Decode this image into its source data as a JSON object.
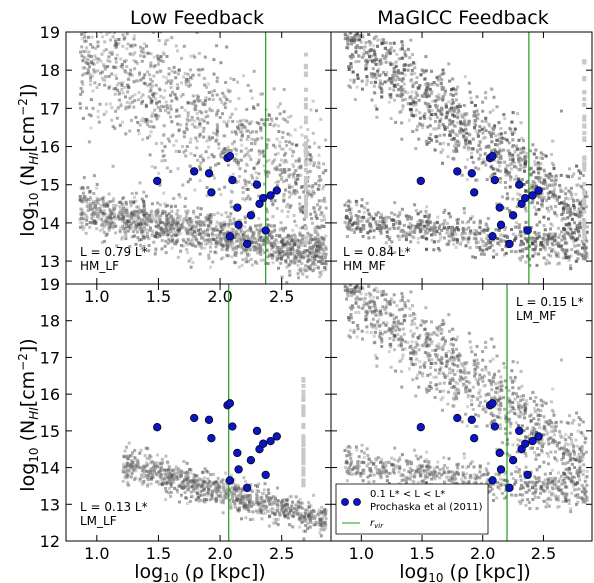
{
  "figure": {
    "column_titles": [
      "Low Feedback",
      "MaGICC Feedback"
    ],
    "xlabel_prefix": "log",
    "xlabel_sub": "10",
    "xlabel_main": " (ρ [kpc])",
    "ylabel_prefix": "log",
    "ylabel_sub": "10",
    "ylabel_main": " (N",
    "ylabel_sub2": "HI",
    "ylabel_unit": "[cm",
    "ylabel_sup": "−2",
    "ylabel_end": "])",
    "legend": {
      "observation_label_1": "0.1 L* < L < L*",
      "observation_label_2": "Prochaska et al (2011)",
      "rvir_label": "r",
      "rvir_sub": "vir"
    }
  },
  "chart_data": [
    {
      "type": "scatter",
      "panel": "top-left",
      "title": "Low Feedback",
      "annotation_lines": [
        "L = 0.79 L*",
        "HM_LF"
      ],
      "xlim": [
        0.75,
        2.9
      ],
      "ylim": [
        12.4,
        19.0
      ],
      "xticks": [
        "1.0",
        "1.5",
        "2.0",
        "2.5"
      ],
      "xtick_values": [
        1.0,
        1.5,
        2.0,
        2.5
      ],
      "yticks": [
        "13",
        "14",
        "15",
        "16",
        "17",
        "18",
        "19"
      ],
      "ytick_values": [
        13,
        14,
        15,
        16,
        17,
        18,
        19
      ],
      "rvir": 2.37,
      "colors": {
        "observations": "#0a14c8",
        "rvir_line": "#1f9a1f",
        "simulation": "#555555"
      }
    },
    {
      "type": "scatter",
      "panel": "top-right",
      "title": "MaGICC Feedback",
      "annotation_lines": [
        "L = 0.84 L*",
        "HM_MF"
      ],
      "xlim": [
        0.75,
        2.9
      ],
      "ylim": [
        12.4,
        19.0
      ],
      "xticks": [],
      "xtick_values": [
        1.0,
        1.5,
        2.0,
        2.5
      ],
      "yticks": [],
      "ytick_values": [
        13,
        14,
        15,
        16,
        17,
        18,
        19
      ],
      "rvir": 2.38,
      "colors": {
        "observations": "#0a14c8",
        "rvir_line": "#1f9a1f",
        "simulation": "#555555"
      }
    },
    {
      "type": "scatter",
      "panel": "bottom-left",
      "annotation_lines": [
        "L = 0.13 L*",
        "LM_LF"
      ],
      "xlim": [
        0.75,
        2.9
      ],
      "ylim": [
        12.0,
        19.0
      ],
      "xticks": [
        "1.0",
        "1.5",
        "2.0",
        "2.5"
      ],
      "xtick_values": [
        1.0,
        1.5,
        2.0,
        2.5
      ],
      "yticks": [
        "12",
        "13",
        "14",
        "15",
        "16",
        "17",
        "18",
        "19"
      ],
      "ytick_values": [
        12,
        13,
        14,
        15,
        16,
        17,
        18,
        19
      ],
      "rvir": 2.07,
      "colors": {
        "observations": "#0a14c8",
        "rvir_line": "#1f9a1f",
        "simulation": "#555555"
      }
    },
    {
      "type": "scatter",
      "panel": "bottom-right",
      "annotation_lines": [
        "L = 0.15 L*",
        "LM_MF"
      ],
      "xlim": [
        0.75,
        2.9
      ],
      "ylim": [
        12.0,
        19.0
      ],
      "xticks": [
        "1.0",
        "1.5",
        "2.0",
        "2.5"
      ],
      "xtick_values": [
        1.0,
        1.5,
        2.0,
        2.5
      ],
      "yticks": [],
      "ytick_values": [
        12,
        13,
        14,
        15,
        16,
        17,
        18,
        19
      ],
      "rvir": 2.2,
      "colors": {
        "observations": "#0a14c8",
        "rvir_line": "#1f9a1f",
        "simulation": "#555555"
      }
    }
  ],
  "observations": {
    "x": [
      1.49,
      1.79,
      1.91,
      1.93,
      2.06,
      2.08,
      2.1,
      2.08,
      2.14,
      2.15,
      2.22,
      2.25,
      2.3,
      2.32,
      2.35,
      2.37,
      2.41,
      2.46
    ],
    "y": [
      15.1,
      15.35,
      15.3,
      14.8,
      15.7,
      15.75,
      15.12,
      13.65,
      14.4,
      13.95,
      13.45,
      14.2,
      15.0,
      14.5,
      14.65,
      13.8,
      14.72,
      14.85
    ]
  }
}
